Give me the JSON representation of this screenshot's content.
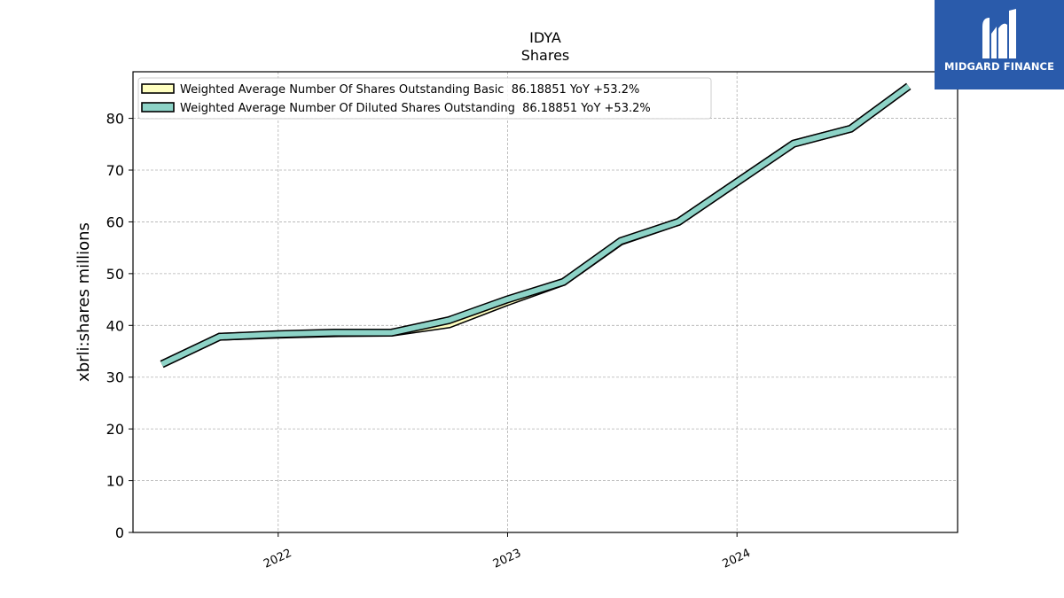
{
  "chart_data": {
    "type": "line",
    "title": "IDYA",
    "subtitle": "Shares",
    "ylabel": "xbrli:shares millions",
    "xlabel": "",
    "ylim": [
      0,
      89
    ],
    "xlim": [
      "2021-05-15",
      "2024-12-17"
    ],
    "yticks": [
      0,
      10,
      20,
      30,
      40,
      50,
      60,
      70,
      80
    ],
    "xticks": [
      {
        "date": "2022-01-01",
        "label": "2022"
      },
      {
        "date": "2023-01-01",
        "label": "2023"
      },
      {
        "date": "2024-01-01",
        "label": "2024"
      }
    ],
    "grid": true,
    "legend_position": "upper-left",
    "x": [
      "2021-06-30",
      "2021-09-30",
      "2021-12-31",
      "2022-03-31",
      "2022-06-30",
      "2022-09-30",
      "2022-12-31",
      "2023-03-31",
      "2023-06-30",
      "2023-09-30",
      "2023-12-31",
      "2024-03-31",
      "2024-06-30",
      "2024-09-30"
    ],
    "series": [
      {
        "name": "Weighted Average Number Of Shares Outstanding Basic",
        "legend_label": "Weighted Average Number Of Shares Outstanding Basic  86.18851 YoY +53.2%",
        "color": "#ffffc0",
        "values": [
          32.5,
          37.8,
          38.2,
          38.5,
          38.6,
          40.2,
          44.5,
          48.4,
          56.2,
          60.0,
          67.6,
          75.1,
          78.0,
          86.18851
        ]
      },
      {
        "name": "Weighted Average Number Of Diluted Shares Outstanding",
        "legend_label": "Weighted Average Number Of Diluted Shares Outstanding  86.18851 YoY +53.2%",
        "color": "#8dd3c7",
        "values": [
          32.5,
          37.8,
          38.3,
          38.6,
          38.6,
          41.0,
          45.0,
          48.4,
          56.3,
          60.0,
          67.6,
          75.1,
          78.0,
          86.18851
        ]
      }
    ]
  },
  "logo": {
    "text": "MIDGARD FINANCE",
    "background": "#2a5bab"
  }
}
